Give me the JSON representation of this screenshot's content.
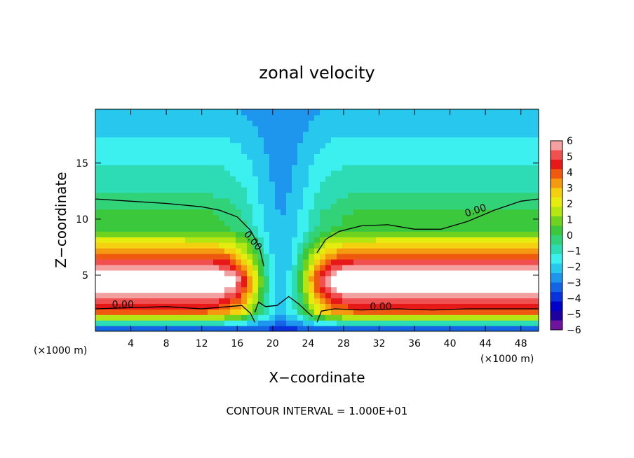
{
  "chart_data": {
    "type": "heatmap",
    "title": "zonal velocity",
    "xlabel": "X−coordinate",
    "ylabel": "Z−coordinate",
    "x_unit_left": "(×1000 m)",
    "x_unit_right": "(×1000 m)",
    "xlim": [
      0,
      50
    ],
    "ylim": [
      0,
      19.8
    ],
    "x_ticks": [
      4,
      8,
      12,
      16,
      20,
      24,
      28,
      32,
      36,
      40,
      44,
      48
    ],
    "y_ticks": [
      5,
      10,
      15
    ],
    "colorbar": {
      "range": [
        -6,
        6
      ],
      "ticks": [
        "6",
        "5",
        "4",
        "3",
        "2",
        "1",
        "0",
        "−1",
        "−2",
        "−3",
        "−4",
        "−5",
        "−6"
      ],
      "colors": [
        "#f5a0a0",
        "#f05050",
        "#e61818",
        "#f05a10",
        "#f59a10",
        "#f5d010",
        "#e6ec10",
        "#b4e614",
        "#6ed21e",
        "#3cc83c",
        "#32d278",
        "#2ddcb4",
        "#3cf0f0",
        "#28c8ee",
        "#1e96ee",
        "#1464e6",
        "#0a32dc",
        "#0000c8",
        "#1e00a0",
        "#6e14a0"
      ]
    },
    "contour_labels": [
      "0.00",
      "0.00",
      "0.00",
      "0.00"
    ],
    "contour_interval_note": "CONTOUR INTERVAL = 1.000E+01",
    "contour_zero_line_left": [
      [
        0,
        11.8
      ],
      [
        4,
        11.6
      ],
      [
        8,
        11.4
      ],
      [
        12,
        11.1
      ],
      [
        14,
        10.8
      ],
      [
        16,
        10.2
      ],
      [
        17.5,
        9
      ],
      [
        18.5,
        7.5
      ],
      [
        19,
        5.8
      ]
    ],
    "contour_zero_line_right": [
      [
        25,
        7
      ],
      [
        26,
        8.2
      ],
      [
        27.5,
        8.9
      ],
      [
        30,
        9.4
      ],
      [
        33,
        9.5
      ],
      [
        36,
        9.1
      ],
      [
        39,
        9.1
      ],
      [
        42,
        9.8
      ],
      [
        45,
        10.8
      ],
      [
        48,
        11.6
      ],
      [
        50,
        11.8
      ]
    ],
    "contour_zero_line_low_left": [
      [
        0,
        2
      ],
      [
        4,
        2.1
      ],
      [
        8,
        2.2
      ],
      [
        12,
        2
      ],
      [
        15,
        2.2
      ],
      [
        16.5,
        2.3
      ],
      [
        17.5,
        1.6
      ],
      [
        18,
        0.8
      ]
    ],
    "contour_zero_line_low_right": [
      [
        25,
        0.8
      ],
      [
        25.5,
        1.8
      ],
      [
        27,
        2
      ],
      [
        30,
        1.9
      ],
      [
        34,
        2
      ],
      [
        38,
        1.9
      ],
      [
        42,
        2
      ],
      [
        46,
        2
      ],
      [
        50,
        2
      ]
    ],
    "contour_zero_line_cavity": [
      [
        18,
        1.7
      ],
      [
        18.4,
        2.6
      ],
      [
        19.2,
        2.2
      ],
      [
        20.5,
        2.3
      ],
      [
        21.8,
        3.1
      ],
      [
        23,
        2.4
      ],
      [
        23.8,
        1.8
      ],
      [
        24.5,
        1.3
      ]
    ],
    "features": {
      "jet_height_km": 4.5,
      "jet_speed_max": 6,
      "upper_min_speed": -2.5,
      "near_surface_min_speed": -4,
      "central_updraft_x_km": 21
    }
  }
}
